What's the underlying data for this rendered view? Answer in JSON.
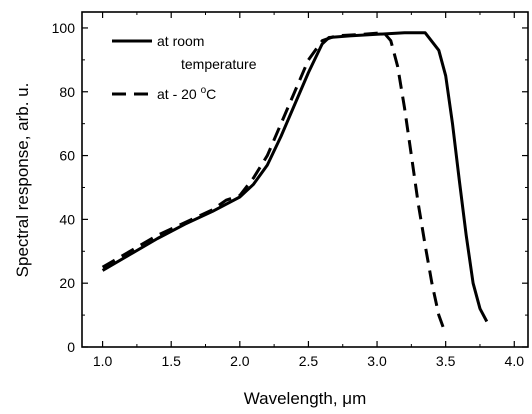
{
  "chart_data": {
    "type": "line",
    "title": "",
    "xlabel": "Wavelength, μm",
    "ylabel": "Spectral response, arb. u.",
    "xlim": [
      0.85,
      4.1
    ],
    "ylim": [
      0,
      105
    ],
    "xticks": [
      1.0,
      1.5,
      2.0,
      2.5,
      3.0,
      3.5,
      4.0
    ],
    "xtick_labels": [
      "1.0",
      "1.5",
      "2.0",
      "2.5",
      "3.0",
      "3.5",
      "4.0"
    ],
    "yticks": [
      0,
      20,
      40,
      60,
      80,
      100
    ],
    "ytick_labels": [
      "0",
      "20",
      "40",
      "60",
      "80",
      "100"
    ],
    "grid": false,
    "legend_position": "top-left",
    "series": [
      {
        "name": "at room temperature",
        "legend_line1": "at room",
        "legend_line2": "temperature",
        "style": "solid",
        "color": "#000000",
        "points": [
          [
            1.0,
            24
          ],
          [
            1.2,
            29
          ],
          [
            1.4,
            34
          ],
          [
            1.6,
            38.5
          ],
          [
            1.8,
            42.5
          ],
          [
            2.0,
            47
          ],
          [
            2.1,
            51
          ],
          [
            2.2,
            57
          ],
          [
            2.3,
            66
          ],
          [
            2.4,
            76
          ],
          [
            2.5,
            86
          ],
          [
            2.6,
            95
          ],
          [
            2.65,
            97
          ],
          [
            2.8,
            97.5
          ],
          [
            3.0,
            98
          ],
          [
            3.2,
            98.5
          ],
          [
            3.35,
            98.5
          ],
          [
            3.45,
            93
          ],
          [
            3.5,
            85
          ],
          [
            3.55,
            70
          ],
          [
            3.6,
            52
          ],
          [
            3.65,
            35
          ],
          [
            3.7,
            20
          ],
          [
            3.75,
            12
          ],
          [
            3.8,
            8
          ]
        ]
      },
      {
        "name": "at - 20 °C",
        "legend_prefix": "at - 20 ",
        "legend_degree": "o",
        "legend_unit": "C",
        "style": "dashed",
        "color": "#000000",
        "points": [
          [
            1.0,
            25
          ],
          [
            1.2,
            30
          ],
          [
            1.4,
            35
          ],
          [
            1.6,
            39
          ],
          [
            1.8,
            43
          ],
          [
            1.9,
            46
          ],
          [
            2.0,
            47.5
          ],
          [
            2.1,
            53
          ],
          [
            2.2,
            60
          ],
          [
            2.3,
            70
          ],
          [
            2.4,
            80
          ],
          [
            2.5,
            90
          ],
          [
            2.6,
            96
          ],
          [
            2.7,
            97.5
          ],
          [
            2.9,
            98
          ],
          [
            3.05,
            98.5
          ],
          [
            3.1,
            96
          ],
          [
            3.15,
            88
          ],
          [
            3.2,
            75
          ],
          [
            3.25,
            60
          ],
          [
            3.3,
            45
          ],
          [
            3.35,
            32
          ],
          [
            3.4,
            20
          ],
          [
            3.45,
            10
          ],
          [
            3.5,
            4
          ]
        ]
      }
    ]
  }
}
